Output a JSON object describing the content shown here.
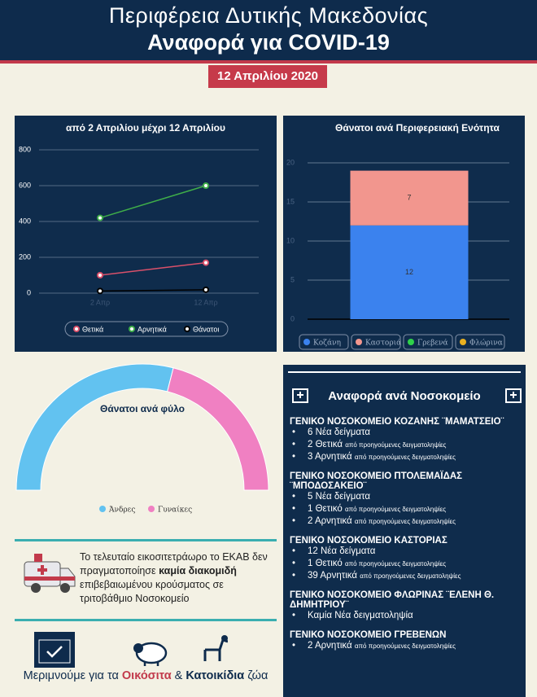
{
  "header": {
    "region": "Περιφέρεια Δυτικής Μακεδονίας",
    "title": "Αναφορά για COVID-19",
    "date": "12 Απριλίου 2020"
  },
  "chart_data": [
    {
      "type": "line",
      "title": "από 2 Απριλίου μέχρι 12 Απριλίου",
      "categories": [
        "2 Απρ",
        "12 Απρ"
      ],
      "series": [
        {
          "name": "Θετικά",
          "color": "#d9506a",
          "values": [
            100,
            170
          ]
        },
        {
          "name": "Αρνητικά",
          "color": "#3fae49",
          "values": [
            420,
            600
          ]
        },
        {
          "name": "Θάνατοι",
          "color": "#000000",
          "values": [
            12,
            19
          ]
        }
      ],
      "ylim": [
        0,
        800
      ],
      "yticks": [
        0,
        200,
        400,
        600,
        800
      ],
      "grid": true
    },
    {
      "type": "bar",
      "stacked": true,
      "title": "Θάνατοι ανά Περιφερειακή Ενότητα",
      "categories": [
        null
      ],
      "series": [
        {
          "name": "Κοζάνη",
          "color": "#3b82ee",
          "values": [
            12
          ]
        },
        {
          "name": "Καστοριά",
          "color": "#f2968e",
          "values": [
            7
          ]
        },
        {
          "name": "Γρεβενά",
          "color": "#2fd14a",
          "values": [
            0
          ]
        },
        {
          "name": "Φλώρινα",
          "color": "#e8b020",
          "values": [
            0
          ]
        }
      ],
      "ylim": [
        0,
        20
      ],
      "yticks": [
        0,
        5,
        10,
        15,
        20
      ],
      "grid": true
    },
    {
      "type": "pie",
      "half": true,
      "title": "Θάνατοι ανά φύλο",
      "categories": [
        "Άνδρες",
        "Γυναίκες"
      ],
      "values": [
        11,
        8
      ],
      "colors": [
        "#62c2f0",
        "#f080c2"
      ]
    }
  ],
  "hospital_report": {
    "title": "Αναφορά ανά Νοσοκομείο",
    "hospitals": [
      {
        "name": "ΓΕΝΙΚΟ ΝΟΣΟΚΟΜΕΙΟ ΚΟΖΑΝΗΣ ¨ΜΑΜΑΤΣΕΙΟ¨",
        "items": [
          {
            "main": "6 Νέα δείγματα"
          },
          {
            "main": "2 Θετικά",
            "note": "από προηγούμενες δειγματοληψίες"
          },
          {
            "main": "3 Αρνητικά",
            "note": "από προηγούμενες δειγματοληψίες"
          }
        ]
      },
      {
        "name": "ΓΕΝΙΚΟ ΝΟΣΟΚΟΜΕΙΟ ΠΤΟΛΕΜΑΪΔΑΣ ¨ΜΠΟΔΟΣΑΚΕΙΟ¨",
        "items": [
          {
            "main": "5 Νέα δείγματα"
          },
          {
            "main": "1 Θετικό",
            "note": "από προηγούμενες δειγματοληψίες"
          },
          {
            "main": "2 Αρνητικά",
            "note": "από προηγούμενες δειγματοληψίες"
          }
        ]
      },
      {
        "name": "ΓΕΝΙΚΟ ΝΟΣΟΚΟΜΕΙΟ ΚΑΣΤΟΡΙΑΣ",
        "items": [
          {
            "main": "12 Νέα δείγματα"
          },
          {
            "main": "1 Θετικό",
            "note": "από προηγούμενες δειγματοληψίες"
          },
          {
            "main": "39 Αρνητικά",
            "note": "από προηγούμενες δειγματοληψίες"
          }
        ]
      },
      {
        "name": "ΓΕΝΙΚΟ ΝΟΣΟΚΟΜΕΙΟ ΦΛΩΡΙΝΑΣ ¨ΕΛΕΝΗ Θ. ΔΗΜΗΤΡΙΟΥ¨",
        "items": [
          {
            "main": "Καμία Νέα δειγματοληψία"
          }
        ]
      },
      {
        "name": "ΓΕΝΙΚΟ ΝΟΣΟΚΟΜΕΙΟ ΓΡΕΒΕΝΩΝ",
        "items": [
          {
            "main": "2 Αρνητικά",
            "note": "από προηγούμενες δειγματοληψίες"
          }
        ]
      }
    ]
  },
  "notice": {
    "before": "Το τελευταίο εικοσιτετράωρο το ΕΚΑΒ δεν πραγματοποίησε",
    "emphasis": "καμία διακομιδή",
    "after": "επιβεβαιωμένου κρούσματος σε τριτοβάθμιο Νοσοκομείο"
  },
  "footer": {
    "before": "Μεριμνούμε για τα",
    "livestock": "Οικόσιτα",
    "and": "&",
    "pets": "Κατοικίδια",
    "after": "ζώα"
  }
}
